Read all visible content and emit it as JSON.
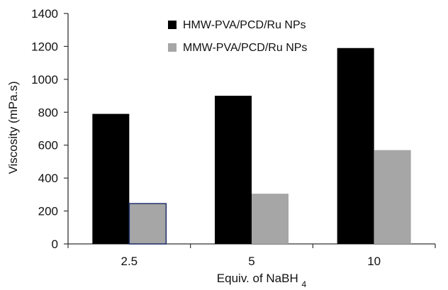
{
  "chart_data": {
    "type": "bar",
    "categories": [
      "2.5",
      "5",
      "10"
    ],
    "series": [
      {
        "name": "HMW-PVA/PCD/Ru NPs",
        "values": [
          790,
          900,
          1190
        ],
        "color": "#000000"
      },
      {
        "name": "MMW-PVA/PCD/Ru NPs",
        "values": [
          245,
          305,
          570
        ],
        "color": "#a6a6a6",
        "outline_first_bar": "#1f2f6b"
      }
    ],
    "xlabel": {
      "main": "Equiv. of NaBH",
      "subscript": "4"
    },
    "ylabel": "Viscosity (mPa.s)",
    "ylim": [
      0,
      1400
    ],
    "yticks": [
      "0",
      "200",
      "400",
      "600",
      "800",
      "1000",
      "1200",
      "1400"
    ],
    "grid": false,
    "legend_position": "top-center"
  }
}
